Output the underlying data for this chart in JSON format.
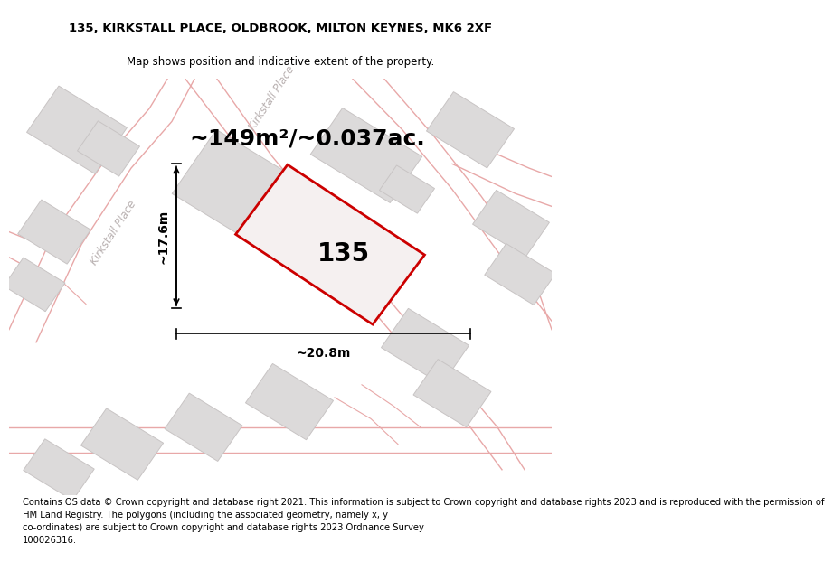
{
  "title_line1": "135, KIRKSTALL PLACE, OLDBROOK, MILTON KEYNES, MK6 2XF",
  "title_line2": "Map shows position and indicative extent of the property.",
  "area_text": "~149m²/~0.037ac.",
  "label_135": "135",
  "dim_width": "~20.8m",
  "dim_height": "~17.6m",
  "footer_text": "Contains OS data © Crown copyright and database right 2021. This information is subject to Crown copyright and database rights 2023 and is reproduced with the permission of\nHM Land Registry. The polygons (including the associated geometry, namely x, y\nco-ordinates) are subject to Crown copyright and database rights 2023 Ordnance Survey\n100026316.",
  "bg_color": "#ffffff",
  "map_bg": "#f7f5f5",
  "road_line_color": "#e8a8a8",
  "building_fill": "#dcdada",
  "building_edge": "#c8c4c4",
  "plot_edge": "#cc0000",
  "plot_fill": "#f5f0f0",
  "dim_color": "#000000",
  "street_color": "#b8b0b0",
  "street_label": "Kirkstall Place",
  "title_fontsize": 9.5,
  "subtitle_fontsize": 8.5,
  "area_fontsize": 18,
  "label_fontsize": 20,
  "dim_fontsize": 10,
  "footer_fontsize": 7.2,
  "street_fontsize": 8.5
}
